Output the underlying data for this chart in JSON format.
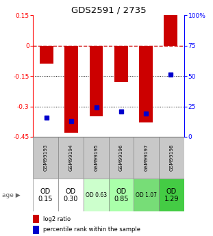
{
  "title": "GDS2591 / 2735",
  "samples": [
    "GSM99193",
    "GSM99194",
    "GSM99195",
    "GSM99196",
    "GSM99197",
    "GSM99198"
  ],
  "log2_ratios": [
    -0.09,
    -0.43,
    -0.35,
    -0.18,
    -0.38,
    0.15
  ],
  "percentile_ranks": [
    16,
    13,
    24,
    21,
    19,
    51
  ],
  "ylim_left": [
    -0.45,
    0.15
  ],
  "ylim_right": [
    0,
    100
  ],
  "bar_color": "#cc0000",
  "dot_color": "#0000cc",
  "age_labels": [
    "OD\n0.15",
    "OD\n0.30",
    "OD 0.63",
    "OD\n0.85",
    "OD 1.07",
    "OD\n1.29"
  ],
  "age_bg_colors": [
    "#ffffff",
    "#ffffff",
    "#ccffcc",
    "#aaffaa",
    "#77dd77",
    "#44cc44"
  ],
  "legend_red": "log2 ratio",
  "legend_blue": "percentile rank within the sample"
}
